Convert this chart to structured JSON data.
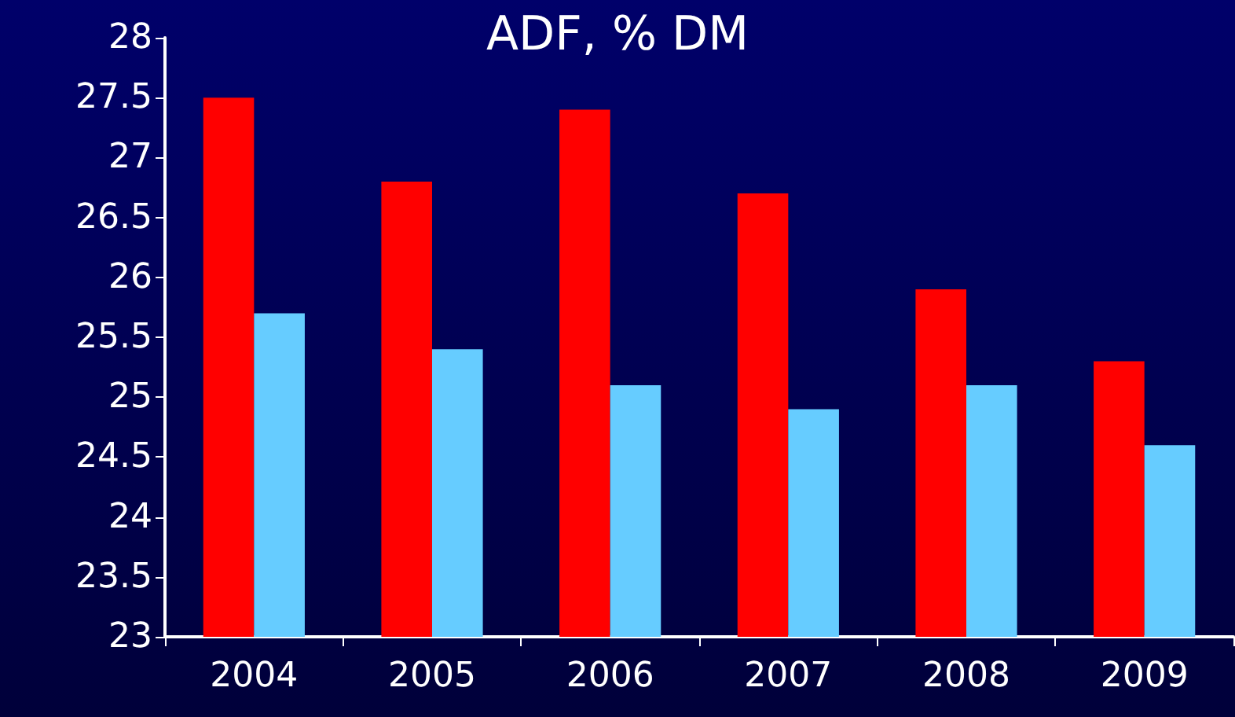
{
  "chart_data": {
    "type": "bar",
    "title": "ADF, % DM",
    "categories": [
      "2004",
      "2005",
      "2006",
      "2007",
      "2008",
      "2009"
    ],
    "series": [
      {
        "color": "#ff0000",
        "values": [
          27.5,
          26.8,
          27.4,
          26.7,
          25.9,
          25.3
        ]
      },
      {
        "color": "#66ccff",
        "values": [
          25.7,
          25.4,
          25.1,
          24.9,
          25.1,
          24.6
        ]
      }
    ],
    "ylim": [
      23,
      28
    ],
    "yticks": [
      23,
      23.5,
      24,
      24.5,
      25,
      25.5,
      26,
      26.5,
      27,
      27.5,
      28
    ],
    "grid": false
  }
}
